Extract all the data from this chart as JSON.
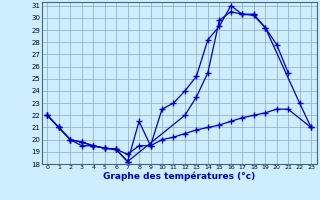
{
  "title": "Graphe des températures (°c)",
  "bg_color": "#cceeff",
  "line_color": "#0000cc",
  "grid_color": "#88aabb",
  "ylim": [
    18,
    31
  ],
  "yticks": [
    18,
    19,
    20,
    21,
    22,
    23,
    24,
    25,
    26,
    27,
    28,
    29,
    30,
    31
  ],
  "xticks": [
    0,
    1,
    2,
    3,
    4,
    5,
    6,
    7,
    8,
    9,
    10,
    11,
    12,
    13,
    14,
    15,
    16,
    17,
    18,
    19,
    20,
    21,
    22,
    23
  ],
  "series1": {
    "x": [
      0,
      1,
      2,
      3,
      4,
      5,
      6,
      7,
      8,
      9,
      10,
      11,
      12,
      13,
      14,
      15,
      16,
      17,
      18,
      19,
      20,
      21
    ],
    "y": [
      22.0,
      21.0,
      20.0,
      19.5,
      19.5,
      19.3,
      19.2,
      18.2,
      21.5,
      19.5,
      22.5,
      23.0,
      24.0,
      25.2,
      28.2,
      29.3,
      31.0,
      30.3,
      30.2,
      29.2,
      27.8,
      25.5
    ]
  },
  "series2": {
    "x": [
      0,
      1,
      2,
      3,
      4,
      5,
      6,
      7,
      12,
      13,
      14,
      15,
      16,
      17,
      18,
      19,
      22,
      23
    ],
    "y": [
      22.0,
      21.0,
      20.0,
      19.8,
      19.5,
      19.3,
      19.2,
      18.2,
      22.0,
      23.5,
      25.5,
      29.8,
      30.5,
      30.3,
      30.3,
      29.2,
      23.0,
      21.0
    ]
  },
  "series3": {
    "x": [
      0,
      1,
      2,
      3,
      4,
      5,
      6,
      7,
      8,
      9,
      10,
      11,
      12,
      13,
      14,
      15,
      16,
      17,
      18,
      19,
      20,
      21,
      23
    ],
    "y": [
      22.0,
      21.0,
      20.0,
      19.8,
      19.5,
      19.3,
      19.2,
      18.8,
      19.5,
      19.5,
      20.0,
      20.2,
      20.5,
      20.8,
      21.0,
      21.2,
      21.5,
      21.8,
      22.0,
      22.2,
      22.5,
      22.5,
      21.0
    ]
  }
}
